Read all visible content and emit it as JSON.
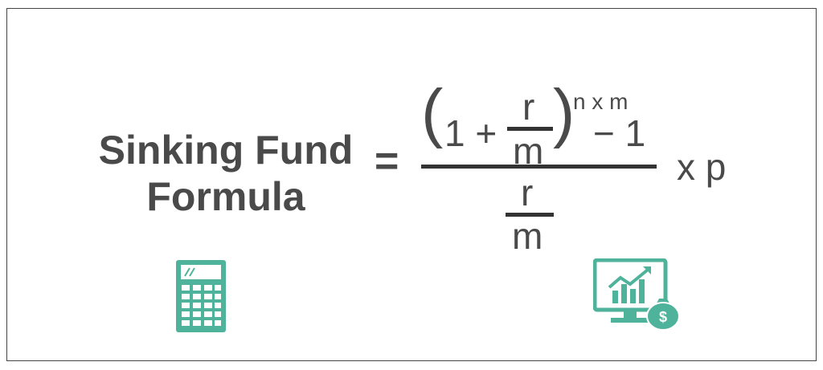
{
  "title": {
    "line1": "Sinking Fund",
    "line2": "Formula"
  },
  "formula": {
    "equals": "=",
    "open_paren": "(",
    "one": "1 +",
    "r_top": "r",
    "m_top": "m",
    "close_paren": ")",
    "exponent": "n x m",
    "minus_one": "− 1",
    "r_bottom": "r",
    "m_bottom": "m",
    "multiplier": "x p"
  },
  "icons": {
    "left": "calculator-icon",
    "right": "growth-chart-money-icon"
  },
  "colors": {
    "accent": "#4fb39c",
    "text": "#4a4a4a",
    "border": "#444444"
  }
}
